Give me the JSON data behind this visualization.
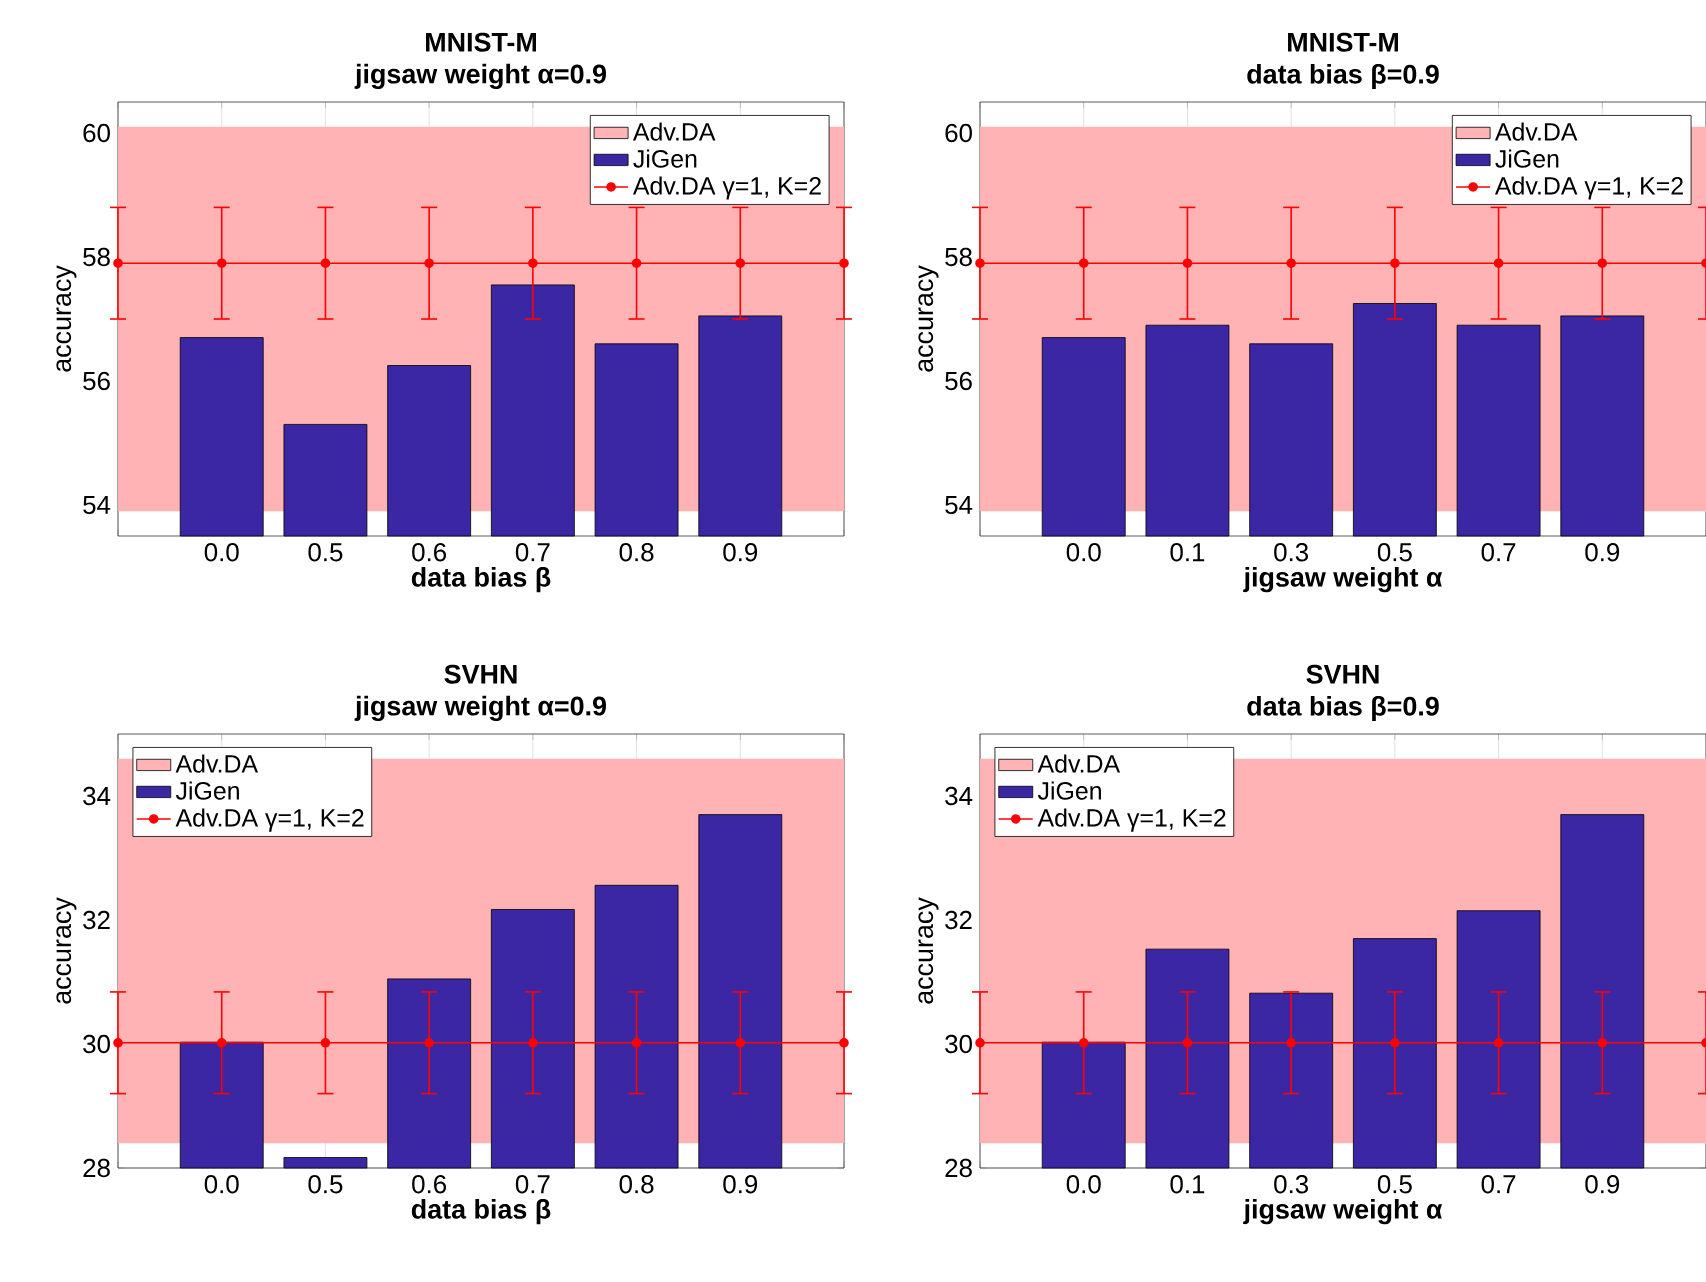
{
  "chart_data": [
    {
      "type": "bar",
      "title": "MNIST-M",
      "subtitle": "jigsaw weight    α=0.9",
      "xlabel": "data bias    β",
      "ylabel": "accuracy",
      "categories": [
        null,
        "0.0",
        "0.5",
        "0.6",
        "0.7",
        "0.8",
        "0.9",
        null
      ],
      "ylim": [
        53.5,
        60.5
      ],
      "yticks": [
        54,
        56,
        58,
        60
      ],
      "grid": true,
      "legend": "top right",
      "bands": [
        {
          "axis": "y",
          "from": 53.9,
          "to": 60.1,
          "label": "Adv.DA",
          "color": "#ffb3b5"
        }
      ],
      "series": [
        {
          "name": "JiGen",
          "color": "#3b26a3",
          "values": [
            null,
            56.7,
            55.3,
            56.25,
            57.55,
            56.6,
            57.05,
            null
          ]
        },
        {
          "name": "Adv.DA   γ=1, K=2",
          "type": "line",
          "marker": "circle",
          "color": "#ff0000",
          "values": [
            57.9,
            57.9,
            57.9,
            57.9,
            57.9,
            57.9,
            57.9,
            57.9
          ],
          "errors": [
            0.9,
            0.9,
            0.9,
            0.9,
            0.9,
            0.9,
            0.9,
            0.9
          ]
        }
      ]
    },
    {
      "type": "bar",
      "title": "MNIST-M",
      "subtitle": "data bias    β=0.9",
      "xlabel": "jigsaw weight    α",
      "ylabel": "accuracy",
      "categories": [
        null,
        "0.0",
        "0.1",
        "0.3",
        "0.5",
        "0.7",
        "0.9",
        null
      ],
      "ylim": [
        53.5,
        60.5
      ],
      "yticks": [
        54,
        56,
        58,
        60
      ],
      "grid": true,
      "legend": "top right",
      "bands": [
        {
          "axis": "y",
          "from": 53.9,
          "to": 60.1,
          "label": "Adv.DA",
          "color": "#ffb3b5"
        }
      ],
      "series": [
        {
          "name": "JiGen",
          "color": "#3b26a3",
          "values": [
            null,
            56.7,
            56.9,
            56.6,
            57.25,
            56.9,
            57.05,
            null
          ]
        },
        {
          "name": "Adv.DA   γ=1, K=2",
          "type": "line",
          "marker": "circle",
          "color": "#ff0000",
          "values": [
            57.9,
            57.9,
            57.9,
            57.9,
            57.9,
            57.9,
            57.9,
            57.9
          ],
          "errors": [
            0.9,
            0.9,
            0.9,
            0.9,
            0.9,
            0.9,
            0.9,
            0.9
          ]
        }
      ]
    },
    {
      "type": "bar",
      "title": "SVHN",
      "subtitle": "jigsaw weight    α=0.9",
      "xlabel": "data bias    β",
      "ylabel": "accuracy",
      "categories": [
        null,
        "0.0",
        "0.5",
        "0.6",
        "0.7",
        "0.8",
        "0.9",
        null
      ],
      "ylim": [
        28,
        35
      ],
      "yticks": [
        28,
        30,
        32,
        34
      ],
      "grid": true,
      "legend": "top left",
      "bands": [
        {
          "axis": "y",
          "from": 28.4,
          "to": 34.6,
          "label": "Adv.DA",
          "color": "#ffb3b5"
        }
      ],
      "series": [
        {
          "name": "JiGen",
          "color": "#3b26a3",
          "values": [
            null,
            30.03,
            28.17,
            31.05,
            32.17,
            32.56,
            33.7,
            null
          ]
        },
        {
          "name": "Adv.DA   γ=1, K=2",
          "type": "line",
          "marker": "circle",
          "color": "#ff0000",
          "values": [
            30.02,
            30.02,
            30.02,
            30.02,
            30.02,
            30.02,
            30.02,
            30.02
          ],
          "errors": [
            0.82,
            0.82,
            0.82,
            0.82,
            0.82,
            0.82,
            0.82,
            0.82
          ]
        }
      ]
    },
    {
      "type": "bar",
      "title": "SVHN",
      "subtitle": "data bias    β=0.9",
      "xlabel": "jigsaw weight    α",
      "ylabel": "accuracy",
      "categories": [
        null,
        "0.0",
        "0.1",
        "0.3",
        "0.5",
        "0.7",
        "0.9",
        null
      ],
      "ylim": [
        28,
        35
      ],
      "yticks": [
        28,
        30,
        32,
        34
      ],
      "grid": true,
      "legend": "top left",
      "bands": [
        {
          "axis": "y",
          "from": 28.4,
          "to": 34.6,
          "label": "Adv.DA",
          "color": "#ffb3b5"
        }
      ],
      "series": [
        {
          "name": "JiGen",
          "color": "#3b26a3",
          "values": [
            null,
            30.03,
            31.53,
            30.82,
            31.7,
            32.15,
            33.7,
            null
          ]
        },
        {
          "name": "Adv.DA   γ=1, K=2",
          "type": "line",
          "marker": "circle",
          "color": "#ff0000",
          "values": [
            30.02,
            30.02,
            30.02,
            30.02,
            30.02,
            30.02,
            30.02,
            30.02
          ],
          "errors": [
            0.82,
            0.82,
            0.82,
            0.82,
            0.82,
            0.82,
            0.82,
            0.82
          ]
        }
      ]
    }
  ]
}
